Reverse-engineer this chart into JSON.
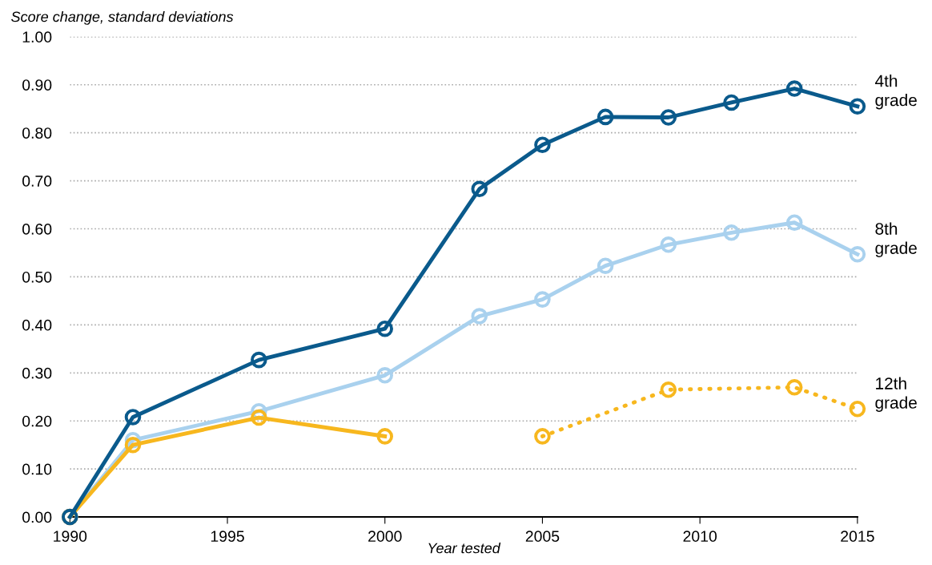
{
  "chart_data": {
    "type": "line",
    "ylabel": "Score change, standard deviations",
    "xlabel": "Year tested",
    "xlim": [
      1990,
      2015
    ],
    "xticks": [
      1990,
      1995,
      2000,
      2005,
      2010,
      2015
    ],
    "ylim": [
      0,
      1
    ],
    "yticks": [
      {
        "value": 0,
        "label": "0.00"
      },
      {
        "value": 0.1,
        "label": "0.10"
      },
      {
        "value": 0.2,
        "label": "0.20"
      },
      {
        "value": 0.3,
        "label": "0.30"
      },
      {
        "value": 0.4,
        "label": "0.40"
      },
      {
        "value": 0.5,
        "label": "0.50"
      },
      {
        "value": 0.6,
        "label": "0.60"
      },
      {
        "value": 0.7,
        "label": "0.70"
      },
      {
        "value": 0.8,
        "label": "0.80"
      },
      {
        "value": 0.9,
        "label": "0.90"
      },
      {
        "value": 1,
        "label": "1.00"
      }
    ],
    "grid": "y",
    "marker": "circle",
    "legend": false,
    "series": [
      {
        "name": "8th\ngrade",
        "color": "#a9d1ee",
        "line_style": "solid",
        "x": [
          1990,
          1992,
          1996,
          2000,
          2003,
          2005,
          2007,
          2009,
          2011,
          2013,
          2015
        ],
        "values": [
          0,
          0.16,
          0.22,
          0.295,
          0.418,
          0.453,
          0.523,
          0.567,
          0.592,
          0.613,
          0.547
        ]
      },
      {
        "color": "#f7b71e",
        "line_style": "solid",
        "x": [
          1990,
          1992,
          1996,
          2000
        ],
        "values": [
          0,
          0.15,
          0.207,
          0.168
        ]
      },
      {
        "name": "12th\ngrade",
        "color": "#f7b71e",
        "line_style": "dotted",
        "x": [
          2005,
          2009,
          2013,
          2015
        ],
        "values": [
          0.168,
          0.265,
          0.27,
          0.225
        ]
      },
      {
        "name": "4th\ngrade",
        "color": "#0a5a8c",
        "line_style": "solid",
        "x": [
          1990,
          1992,
          1996,
          2000,
          2003,
          2005,
          2007,
          2009,
          2011,
          2013,
          2015
        ],
        "values": [
          0,
          0.208,
          0.327,
          0.392,
          0.683,
          0.775,
          0.833,
          0.832,
          0.863,
          0.892,
          0.855
        ]
      }
    ]
  }
}
